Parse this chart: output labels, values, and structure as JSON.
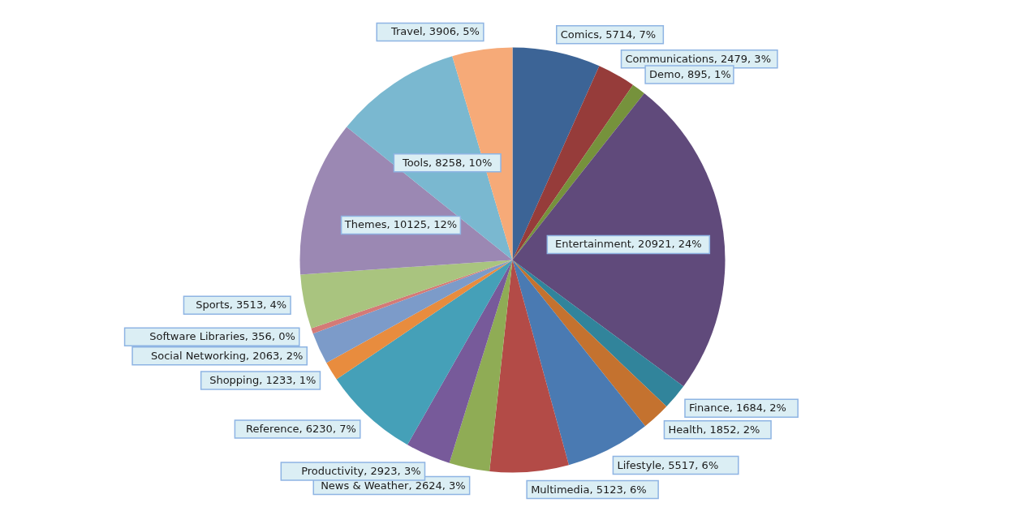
{
  "chart_data": {
    "type": "pie",
    "categories": [
      "Comics",
      "Communications",
      "Demo",
      "Entertainment",
      "Finance",
      "Health",
      "Lifestyle",
      "Multimedia",
      "News & Weather",
      "Productivity",
      "Reference",
      "Shopping",
      "Social Networking",
      "Software Libraries",
      "Sports",
      "Themes",
      "Tools",
      "Travel"
    ],
    "values": [
      5714,
      2479,
      895,
      20921,
      1684,
      1852,
      5517,
      5123,
      2624,
      2923,
      6230,
      1233,
      2063,
      356,
      3513,
      10125,
      8258,
      3906
    ],
    "colors": [
      "#3c6496",
      "#963c3a",
      "#76923c",
      "#604a7b",
      "#31849b",
      "#c4722f",
      "#4a7ab2",
      "#b34b47",
      "#8fac55",
      "#775a9a",
      "#45a0b8",
      "#e88c3e",
      "#7c9bc9",
      "#d47a77",
      "#a9c47f",
      "#9b88b3",
      "#7ab8d0",
      "#f6aa78"
    ],
    "value_labels": [
      "5714, 7%",
      "2479, 3%",
      "895, 1%",
      "20921, 24%",
      "1684, 2%",
      "1852, 2%",
      "5517, 6%",
      "5123, 6%",
      "2624, 3%",
      "2923, 3%",
      "6230, 7%",
      "1233, 1%",
      "2063, 2%",
      "356, 0%",
      "3513, 4%",
      "10125, 12%",
      "8258, 10%",
      "3906, 5%"
    ]
  }
}
